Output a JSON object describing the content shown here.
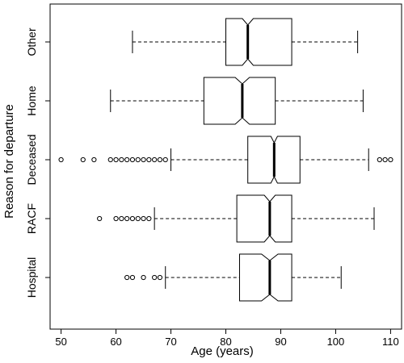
{
  "chart_data": {
    "type": "boxplot",
    "orientation": "horizontal",
    "notched": true,
    "xlabel": "Age (years)",
    "ylabel": "Reason for departure",
    "xlim": [
      48,
      112
    ],
    "xticks": [
      50,
      60,
      70,
      80,
      90,
      100,
      110
    ],
    "categories": [
      "Hospital",
      "RACF",
      "Deceased",
      "Home",
      "Other"
    ],
    "series": [
      {
        "category": "Hospital",
        "whisker_low": 69,
        "q1": 82.5,
        "median": 88,
        "q3": 92,
        "whisker_high": 101,
        "notch_low": 86.5,
        "notch_high": 89.5,
        "outliers": [
          62,
          63,
          65,
          67,
          68
        ]
      },
      {
        "category": "RACF",
        "whisker_low": 67,
        "q1": 82,
        "median": 88,
        "q3": 92,
        "whisker_high": 107,
        "notch_low": 87,
        "notch_high": 89,
        "outliers": [
          57,
          60,
          61,
          62,
          63,
          64,
          65,
          66
        ]
      },
      {
        "category": "Deceased",
        "whisker_low": 70,
        "q1": 84,
        "median": 88.8,
        "q3": 93.5,
        "whisker_high": 106,
        "notch_low": 88.2,
        "notch_high": 89.4,
        "outliers": [
          50,
          54,
          56,
          59,
          60,
          61,
          62,
          63,
          64,
          65,
          66,
          67,
          68,
          69,
          108,
          109,
          110
        ]
      },
      {
        "category": "Home",
        "whisker_low": 59,
        "q1": 76,
        "median": 83,
        "q3": 89,
        "whisker_high": 105,
        "notch_low": 81.7,
        "notch_high": 84.3,
        "outliers": []
      },
      {
        "category": "Other",
        "whisker_low": 63,
        "q1": 80,
        "median": 84,
        "q3": 92,
        "whisker_high": 104,
        "notch_low": 83,
        "notch_high": 85,
        "outliers": []
      }
    ]
  }
}
